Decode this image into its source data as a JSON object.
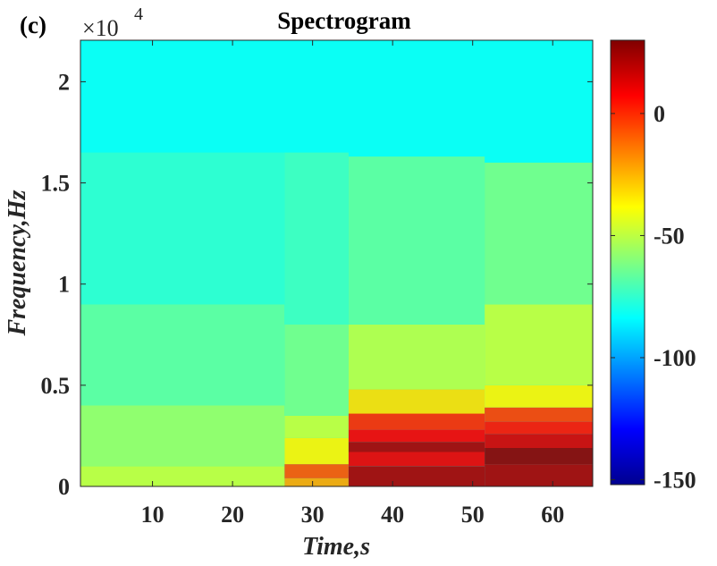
{
  "panel_label": "(c)",
  "multiplier": {
    "base": "×10",
    "exponent": "4"
  },
  "chart_data": {
    "type": "heatmap",
    "title": "Spectrogram",
    "xlabel": "Time,s",
    "ylabel": "Frequency,Hz",
    "xlim": [
      1,
      65
    ],
    "ylim": [
      0,
      22050
    ],
    "xticks": [
      {
        "value": 10,
        "label": "10"
      },
      {
        "value": 20,
        "label": "20"
      },
      {
        "value": 30,
        "label": "30"
      },
      {
        "value": 40,
        "label": "40"
      },
      {
        "value": 50,
        "label": "50"
      },
      {
        "value": 60,
        "label": "60"
      }
    ],
    "yticks": [
      {
        "value": 0,
        "label": "0"
      },
      {
        "value": 5000,
        "label": "0.5"
      },
      {
        "value": 10000,
        "label": "1"
      },
      {
        "value": 15000,
        "label": "1.5"
      },
      {
        "value": 20000,
        "label": "2"
      }
    ],
    "colorbar": {
      "colormap": "jet",
      "clim": [
        -152,
        30
      ],
      "ticks": [
        {
          "value": 0,
          "label": "0"
        },
        {
          "value": -50,
          "label": "-50"
        },
        {
          "value": -100,
          "label": "-100"
        },
        {
          "value": -150,
          "label": "-150"
        }
      ]
    },
    "background_level_db": -82,
    "segments": [
      {
        "t_start": 1,
        "t_end": 26.5,
        "bands": [
          {
            "f_low": 0,
            "f_high": 1000,
            "level_db": -48
          },
          {
            "f_low": 1000,
            "f_high": 4000,
            "level_db": -56
          },
          {
            "f_low": 4000,
            "f_high": 9000,
            "level_db": -66
          },
          {
            "f_low": 9000,
            "f_high": 16500,
            "level_db": -75
          }
        ]
      },
      {
        "t_start": 26.5,
        "t_end": 34.5,
        "bands": [
          {
            "f_low": 0,
            "f_high": 400,
            "level_db": -22
          },
          {
            "f_low": 400,
            "f_high": 1100,
            "level_db": -8
          },
          {
            "f_low": 1100,
            "f_high": 2400,
            "level_db": -36
          },
          {
            "f_low": 2400,
            "f_high": 3500,
            "level_db": -48
          },
          {
            "f_low": 3500,
            "f_high": 8000,
            "level_db": -62
          },
          {
            "f_low": 8000,
            "f_high": 16500,
            "level_db": -72
          }
        ]
      },
      {
        "t_start": 34.5,
        "t_end": 51.5,
        "bands": [
          {
            "f_low": 0,
            "f_high": 1000,
            "level_db": 22
          },
          {
            "f_low": 1000,
            "f_high": 1700,
            "level_db": 10
          },
          {
            "f_low": 1700,
            "f_high": 2200,
            "level_db": 22
          },
          {
            "f_low": 2200,
            "f_high": 2800,
            "level_db": 8
          },
          {
            "f_low": 2800,
            "f_high": 3600,
            "level_db": 0
          },
          {
            "f_low": 3600,
            "f_high": 4800,
            "level_db": -32
          },
          {
            "f_low": 4800,
            "f_high": 8000,
            "level_db": -50
          },
          {
            "f_low": 8000,
            "f_high": 16300,
            "level_db": -66
          }
        ]
      },
      {
        "t_start": 51.5,
        "t_end": 65,
        "bands": [
          {
            "f_low": 0,
            "f_high": 1100,
            "level_db": 22
          },
          {
            "f_low": 1100,
            "f_high": 1900,
            "level_db": 27
          },
          {
            "f_low": 1900,
            "f_high": 2600,
            "level_db": 14
          },
          {
            "f_low": 2600,
            "f_high": 3200,
            "level_db": 4
          },
          {
            "f_low": 3200,
            "f_high": 3900,
            "level_db": -4
          },
          {
            "f_low": 3900,
            "f_high": 5000,
            "level_db": -36
          },
          {
            "f_low": 5000,
            "f_high": 9000,
            "level_db": -48
          },
          {
            "f_low": 9000,
            "f_high": 16000,
            "level_db": -62
          }
        ]
      }
    ]
  }
}
